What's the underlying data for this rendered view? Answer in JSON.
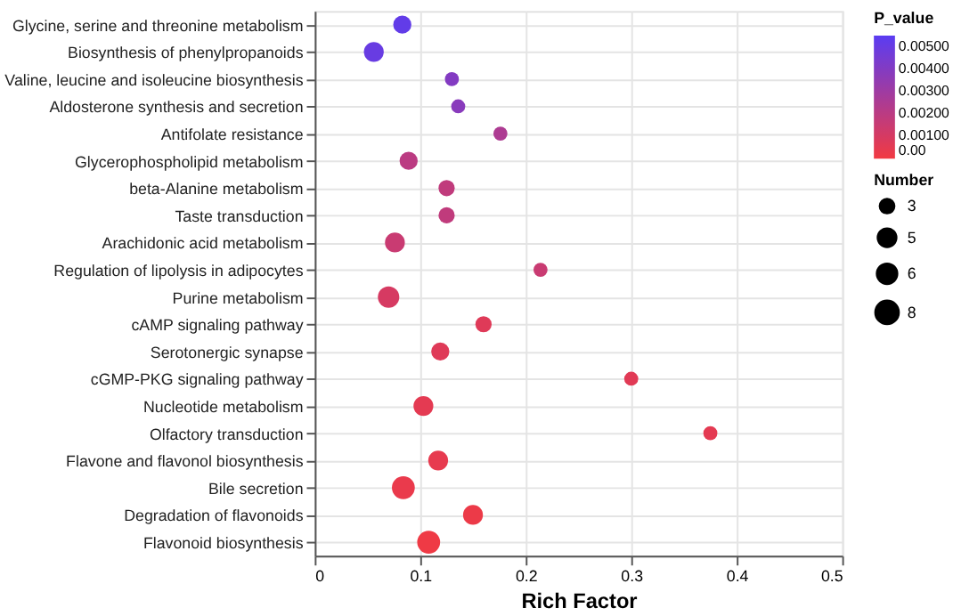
{
  "chart_data": {
    "type": "bubble",
    "orientation": "horizontal",
    "xlabel": "Rich Factor",
    "clabel": "P_value",
    "legend_title": "Number",
    "grid": true,
    "categories": [
      "Glycine, serine and threonine metabolism",
      "Biosynthesis of phenylpropanoids",
      "Valine, leucine and isoleucine biosynthesis",
      "Aldosterone synthesis and secretion",
      "Antifolate resistance",
      "Glycerophospholipid metabolism",
      "beta-Alanine metabolism",
      "Taste transduction",
      "Arachidonic acid metabolism",
      "Regulation of lipolysis in adipocytes",
      "Purine metabolism",
      "cAMP signaling pathway",
      "Serotonergic synapse",
      "cGMP-PKG signaling pathway",
      "Nucleotide metabolism",
      "Olfactory transduction",
      "Flavone and flavonol biosynthesis",
      "Bile secretion",
      "Degradation of flavonoids",
      "Flavonoid biosynthesis"
    ],
    "values": [
      0.083,
      0.056,
      0.13,
      0.136,
      0.176,
      0.089,
      0.125,
      0.125,
      0.076,
      0.214,
      0.07,
      0.16,
      0.119,
      0.3,
      0.103,
      0.375,
      0.117,
      0.084,
      0.15,
      0.108
    ],
    "sizes": [
      5,
      6,
      3,
      3,
      3,
      5,
      4,
      4,
      6,
      3,
      7,
      4,
      5,
      3,
      6,
      3,
      6,
      8,
      6,
      8
    ],
    "size_legend": [
      3,
      5,
      6,
      8
    ],
    "cvalues": [
      0.0052,
      0.005,
      0.004,
      0.0038,
      0.0025,
      0.002,
      0.0018,
      0.0018,
      0.0015,
      0.0015,
      0.001,
      0.0007,
      0.0007,
      0.0006,
      0.0005,
      0.0005,
      0.0004,
      0.0003,
      0.0002,
      0.0001
    ],
    "clim": [
      0,
      0.0055
    ],
    "cticks": [
      {
        "value": 0,
        "label": "0.00"
      },
      {
        "value": 0.001,
        "label": "0.00100"
      },
      {
        "value": 0.002,
        "label": "0.00200"
      },
      {
        "value": 0.003,
        "label": "0.00300"
      },
      {
        "value": 0.004,
        "label": "0.00400"
      },
      {
        "value": 0.005,
        "label": "0.00500"
      }
    ],
    "xlim": [
      0,
      0.5
    ],
    "xticks": [
      0,
      0.1,
      0.2,
      0.3,
      0.4,
      0.5
    ]
  }
}
